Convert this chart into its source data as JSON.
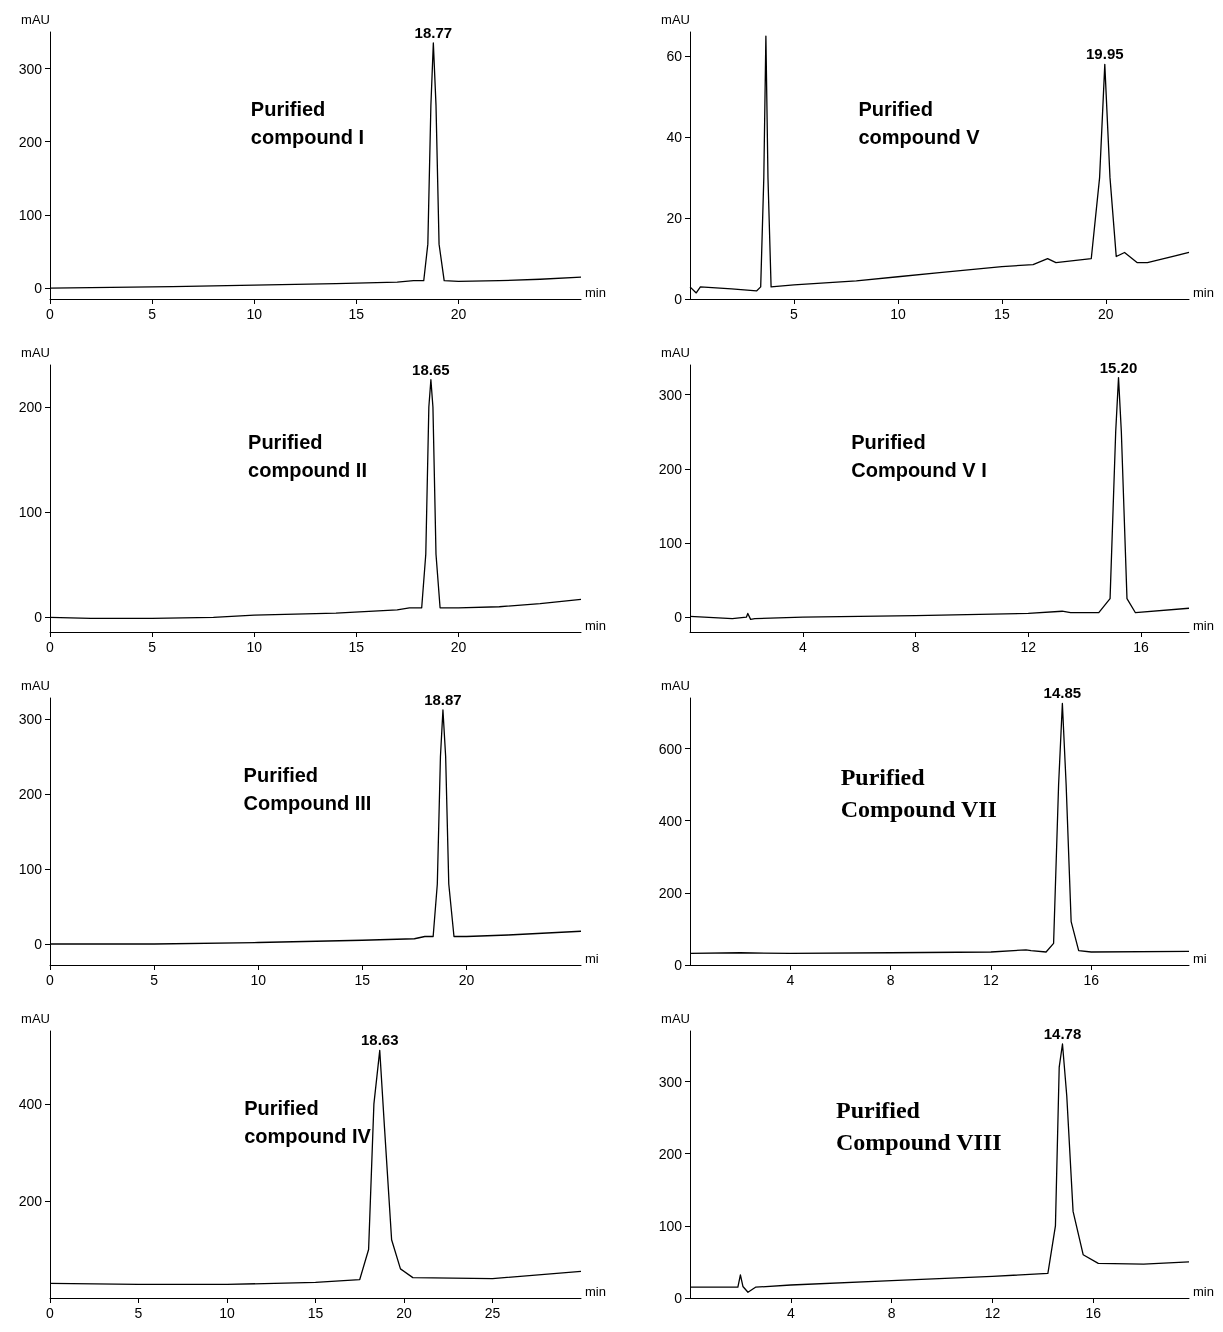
{
  "chart_data": [
    {
      "type": "line",
      "ylabel": "mAU",
      "xlabel": "min",
      "xlim": [
        0,
        26
      ],
      "xticks": [
        0,
        5,
        10,
        15,
        20
      ],
      "ylim": [
        -15,
        350
      ],
      "yticks": [
        0,
        100,
        200,
        300
      ],
      "grid": false,
      "marker": "none",
      "line_style": "solid",
      "annotations": [
        "Purified\ncompound I",
        {
          "text": "18.77",
          "x": 18.77,
          "y": 335
        }
      ],
      "series": [
        {
          "color": "#000000",
          "x": [
            0,
            3,
            6,
            10,
            14,
            17,
            17.8,
            18.3,
            18.5,
            18.65,
            18.77,
            18.9,
            19.05,
            19.3,
            20,
            22,
            24,
            26
          ],
          "values": [
            0,
            1,
            2,
            4,
            6,
            8,
            10,
            10,
            60,
            250,
            335,
            250,
            60,
            10,
            9,
            10,
            12,
            15
          ]
        }
      ]
    },
    {
      "type": "line",
      "ylabel": "mAU",
      "xlabel": "min",
      "xlim": [
        0,
        24
      ],
      "xticks": [
        5,
        10,
        15,
        20
      ],
      "ylim": [
        0,
        66
      ],
      "yticks": [
        0,
        20,
        40,
        60
      ],
      "grid": false,
      "marker": "none",
      "line_style": "solid",
      "annotations": [
        "Purified\ncompound V",
        {
          "text": "19.95",
          "x": 19.95,
          "y": 58
        }
      ],
      "series": [
        {
          "color": "#000000",
          "x": [
            0,
            0.3,
            0.5,
            2,
            3.2,
            3.4,
            3.55,
            3.65,
            3.75,
            3.9,
            5,
            8,
            10,
            12,
            15,
            16.5,
            17.2,
            17.6,
            19.3,
            19.7,
            19.95,
            20.2,
            20.5,
            20.9,
            21.5,
            22,
            24
          ],
          "values": [
            3,
            1.5,
            3,
            2.5,
            2,
            3,
            30,
            65,
            30,
            3,
            3.5,
            4.5,
            5.5,
            6.5,
            8,
            8.5,
            10,
            9,
            10,
            30,
            58,
            30,
            10.5,
            11.5,
            9,
            9,
            11.5
          ]
        }
      ]
    },
    {
      "type": "line",
      "ylabel": "mAU",
      "xlabel": "min",
      "xlim": [
        0,
        26
      ],
      "xticks": [
        0,
        5,
        10,
        15,
        20
      ],
      "ylim": [
        -14,
        240
      ],
      "yticks": [
        0,
        100,
        200
      ],
      "grid": false,
      "marker": "none",
      "line_style": "solid",
      "annotations": [
        "Purified\ncompound II",
        {
          "text": "18.65",
          "x": 18.65,
          "y": 226
        }
      ],
      "series": [
        {
          "color": "#000000",
          "x": [
            0,
            2,
            5,
            8,
            10,
            14,
            17,
            17.6,
            18.2,
            18.4,
            18.55,
            18.65,
            18.75,
            18.9,
            19.1,
            20,
            22,
            24,
            26
          ],
          "values": [
            0,
            -1,
            -1,
            0,
            2,
            4,
            7,
            9,
            9,
            60,
            200,
            226,
            200,
            60,
            9,
            9,
            10,
            13,
            17
          ]
        }
      ]
    },
    {
      "type": "line",
      "ylabel": "mAU",
      "xlabel": "min",
      "xlim": [
        0,
        17.7
      ],
      "xticks": [
        4,
        8,
        12,
        16
      ],
      "ylim": [
        -20,
        340
      ],
      "yticks": [
        0,
        100,
        200,
        300
      ],
      "grid": false,
      "marker": "none",
      "line_style": "solid",
      "annotations": [
        "Purified\nCompound V I",
        {
          "text": "15.20",
          "x": 15.2,
          "y": 323
        }
      ],
      "series": [
        {
          "color": "#000000",
          "x": [
            0,
            1.5,
            2,
            2.05,
            2.15,
            2.3,
            4,
            8,
            12,
            13.2,
            13.5,
            14.5,
            14.9,
            15.1,
            15.2,
            15.3,
            15.5,
            15.8,
            17.7
          ],
          "values": [
            1,
            -2,
            0,
            5,
            -3,
            -2,
            0,
            2,
            5,
            8,
            6,
            6,
            25,
            250,
            323,
            250,
            25,
            6,
            12
          ]
        }
      ]
    },
    {
      "type": "line",
      "ylabel": "mAU",
      "xlabel": "mi",
      "xlim": [
        0,
        25.5
      ],
      "xticks": [
        0,
        5,
        10,
        15,
        20
      ],
      "ylim": [
        -28,
        328
      ],
      "yticks": [
        0,
        100,
        200,
        300
      ],
      "grid": false,
      "marker": "none",
      "line_style": "solid",
      "annotations": [
        "Purified\nCompound III",
        {
          "text": "18.87",
          "x": 18.87,
          "y": 312
        }
      ],
      "series": [
        {
          "color": "#000000",
          "x": [
            0,
            5,
            10,
            15,
            17.5,
            18,
            18.4,
            18.6,
            18.75,
            18.87,
            19,
            19.15,
            19.4,
            20,
            22,
            25.5
          ],
          "values": [
            0,
            0,
            2,
            5,
            7,
            10,
            10,
            80,
            250,
            312,
            250,
            80,
            10,
            10,
            12,
            17
          ]
        }
      ]
    },
    {
      "type": "line",
      "ylabel": "mAU",
      "xlabel": "mi",
      "xlim": [
        0,
        19.9
      ],
      "xticks": [
        4,
        8,
        12,
        16
      ],
      "ylim": [
        0,
        740
      ],
      "yticks": [
        0,
        200,
        400,
        600
      ],
      "grid": false,
      "marker": "none",
      "line_style": "solid",
      "annotations": [
        "Purified\nCompound VII",
        {
          "text": "14.85",
          "x": 14.85,
          "y": 725
        }
      ],
      "series": [
        {
          "color": "#000000",
          "x": [
            0,
            2,
            4,
            8,
            12,
            13.4,
            13.6,
            14.2,
            14.5,
            14.7,
            14.85,
            15,
            15.2,
            15.5,
            16,
            19.9
          ],
          "values": [
            32,
            34,
            32,
            34,
            36,
            42,
            40,
            36,
            60,
            500,
            725,
            500,
            120,
            40,
            36,
            38
          ]
        }
      ]
    },
    {
      "type": "line",
      "ylabel": "mAU",
      "xlabel": "min",
      "xlim": [
        0,
        30
      ],
      "xticks": [
        0,
        5,
        10,
        15,
        20,
        25
      ],
      "ylim": [
        0,
        550
      ],
      "yticks": [
        200,
        400
      ],
      "grid": false,
      "marker": "none",
      "line_style": "solid",
      "annotations": [
        "Purified\ncompound IV",
        {
          "text": "18.63",
          "x": 18.63,
          "y": 510
        }
      ],
      "series": [
        {
          "color": "#000000",
          "x": [
            0,
            5,
            10,
            15,
            17.5,
            18,
            18.3,
            18.63,
            18.9,
            19.3,
            19.8,
            20.5,
            25,
            30
          ],
          "values": [
            30,
            28,
            28,
            32,
            38,
            100,
            400,
            510,
            350,
            120,
            60,
            42,
            40,
            55
          ]
        }
      ]
    },
    {
      "type": "line",
      "ylabel": "mAU",
      "xlabel": "min",
      "xlim": [
        0,
        19.8
      ],
      "xticks": [
        4,
        8,
        12,
        16
      ],
      "ylim": [
        0,
        370
      ],
      "yticks": [
        0,
        100,
        200,
        300
      ],
      "grid": false,
      "marker": "none",
      "line_style": "solid",
      "annotations": [
        "Purified\nCompound VIII",
        {
          "text": "14.78",
          "x": 14.78,
          "y": 352
        }
      ],
      "series": [
        {
          "color": "#000000",
          "x": [
            0,
            1.9,
            2,
            2.1,
            2.3,
            2.6,
            4,
            8,
            12,
            14.2,
            14.5,
            14.65,
            14.78,
            14.95,
            15.2,
            15.6,
            16.2,
            18,
            19.8
          ],
          "values": [
            15,
            15,
            32,
            16,
            8,
            15,
            18,
            24,
            30,
            34,
            100,
            320,
            352,
            280,
            120,
            60,
            48,
            47,
            50
          ]
        }
      ]
    }
  ]
}
